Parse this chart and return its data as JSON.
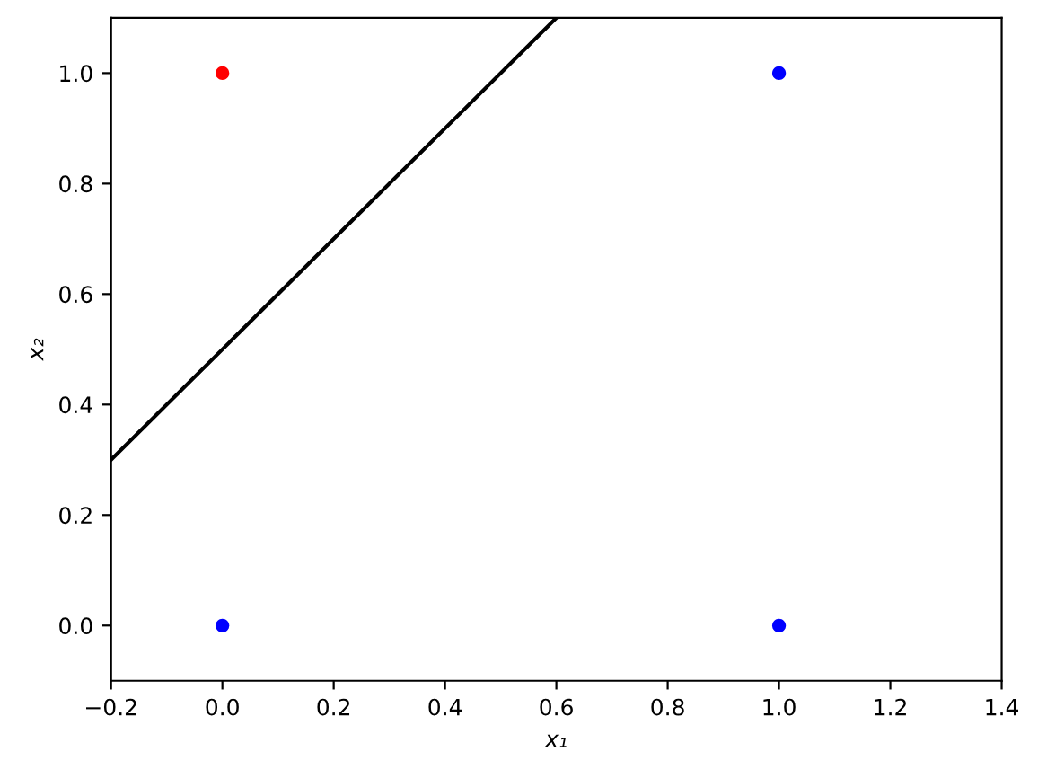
{
  "chart_data": {
    "type": "scatter",
    "xlabel": "x₁",
    "ylabel": "x₂",
    "series": [
      {
        "type": "line",
        "x": [
          -0.2,
          0.6
        ],
        "values": [
          0.3,
          1.1
        ],
        "color": "#000000",
        "line_style": "solid"
      },
      {
        "x": [
          0,
          0,
          1,
          1
        ],
        "values": [
          1,
          0,
          0,
          1
        ],
        "colors": [
          "#ff0000",
          "#0000ff",
          "#0000ff",
          "#0000ff"
        ],
        "marker": "circle"
      }
    ],
    "xlim": [
      -0.2,
      1.4
    ],
    "ylim": [
      -0.1,
      1.1
    ],
    "xticks": [
      {
        "value": -0.2,
        "label": "−0.2"
      },
      {
        "value": 0,
        "label": "0.0"
      },
      {
        "value": 0.2,
        "label": "0.2"
      },
      {
        "value": 0.4,
        "label": "0.4"
      },
      {
        "value": 0.6,
        "label": "0.6"
      },
      {
        "value": 0.8,
        "label": "0.8"
      },
      {
        "value": 1,
        "label": "1.0"
      },
      {
        "value": 1.2,
        "label": "1.2"
      },
      {
        "value": 1.4,
        "label": "1.4"
      }
    ],
    "yticks": [
      {
        "value": 0,
        "label": "0.0"
      },
      {
        "value": 0.2,
        "label": "0.2"
      },
      {
        "value": 0.4,
        "label": "0.4"
      },
      {
        "value": 0.6,
        "label": "0.6"
      },
      {
        "value": 0.8,
        "label": "0.8"
      },
      {
        "value": 1,
        "label": "1.0"
      }
    ]
  }
}
